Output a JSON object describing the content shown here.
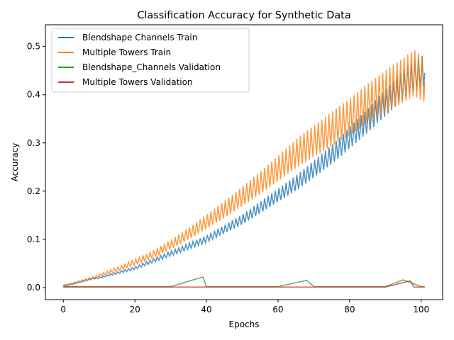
{
  "chart_data": {
    "type": "line",
    "title": "Classification Accuracy for Synthetic Data",
    "xlabel": "Epochs",
    "ylabel": "Accuracy",
    "xlim": [
      -5,
      106
    ],
    "ylim": [
      -0.025,
      0.545
    ],
    "xticks": [
      0,
      20,
      40,
      60,
      80,
      100
    ],
    "yticks": [
      0.0,
      0.1,
      0.2,
      0.3,
      0.4,
      0.5
    ],
    "xtick_labels": [
      "0",
      "20",
      "40",
      "60",
      "80",
      "100"
    ],
    "ytick_labels": [
      "0.0",
      "0.1",
      "0.2",
      "0.3",
      "0.4",
      "0.5"
    ],
    "grid": false,
    "legend_position": "upper-left",
    "series": [
      {
        "name": "Blendshape Channels Train",
        "color": "#1f77b4",
        "x": [
          0,
          2,
          4,
          6,
          8,
          10,
          12,
          14,
          16,
          18,
          20,
          22,
          24,
          26,
          28,
          30,
          32,
          34,
          36,
          38,
          40,
          42,
          44,
          46,
          48,
          50,
          52,
          54,
          56,
          58,
          60,
          62,
          64,
          66,
          68,
          70,
          72,
          74,
          76,
          78,
          80,
          82,
          84,
          86,
          88,
          90,
          92,
          94,
          96,
          98,
          100,
          101
        ],
        "values": [
          0.003,
          0.006,
          0.01,
          0.014,
          0.018,
          0.02,
          0.024,
          0.028,
          0.032,
          0.036,
          0.04,
          0.046,
          0.052,
          0.058,
          0.064,
          0.07,
          0.076,
          0.082,
          0.088,
          0.094,
          0.1,
          0.108,
          0.116,
          0.124,
          0.132,
          0.14,
          0.15,
          0.16,
          0.17,
          0.18,
          0.19,
          0.2,
          0.21,
          0.22,
          0.232,
          0.244,
          0.256,
          0.268,
          0.28,
          0.294,
          0.308,
          0.322,
          0.336,
          0.35,
          0.366,
          0.38,
          0.395,
          0.41,
          0.425,
          0.435,
          0.445,
          0.445
        ],
        "spike_ratio": 0.08
      },
      {
        "name": "Multiple Towers Train",
        "color": "#ff7f0e",
        "x": [
          0,
          2,
          4,
          6,
          8,
          10,
          12,
          14,
          16,
          18,
          20,
          22,
          24,
          26,
          28,
          30,
          32,
          34,
          36,
          38,
          40,
          42,
          44,
          46,
          48,
          50,
          52,
          54,
          56,
          58,
          60,
          62,
          64,
          66,
          68,
          70,
          72,
          74,
          76,
          78,
          80,
          82,
          84,
          86,
          88,
          90,
          92,
          94,
          96,
          98,
          100,
          101
        ],
        "values": [
          0.005,
          0.008,
          0.012,
          0.016,
          0.02,
          0.025,
          0.03,
          0.035,
          0.04,
          0.046,
          0.052,
          0.058,
          0.065,
          0.072,
          0.08,
          0.088,
          0.097,
          0.106,
          0.115,
          0.125,
          0.135,
          0.145,
          0.155,
          0.165,
          0.176,
          0.187,
          0.198,
          0.209,
          0.22,
          0.232,
          0.244,
          0.256,
          0.268,
          0.28,
          0.29,
          0.3,
          0.31,
          0.32,
          0.33,
          0.34,
          0.35,
          0.36,
          0.372,
          0.382,
          0.392,
          0.402,
          0.412,
          0.42,
          0.43,
          0.44,
          0.43,
          0.425
        ],
        "spike_ratio": 0.12
      },
      {
        "name": "Blendshape_Channels Validation",
        "color": "#2ca02c",
        "x": [
          0,
          10,
          20,
          30,
          39,
          40,
          50,
          60,
          68,
          70,
          80,
          90,
          95,
          100,
          101
        ],
        "values": [
          0.002,
          0.002,
          0.002,
          0.002,
          0.022,
          0.002,
          0.002,
          0.002,
          0.015,
          0.002,
          0.002,
          0.002,
          0.016,
          0.002,
          0.002
        ]
      },
      {
        "name": "Multiple Towers Validation",
        "color": "#d62728",
        "x": [
          0,
          10,
          20,
          30,
          40,
          50,
          60,
          70,
          80,
          90,
          97,
          98,
          100,
          101
        ],
        "values": [
          0.001,
          0.001,
          0.001,
          0.001,
          0.001,
          0.001,
          0.001,
          0.001,
          0.001,
          0.001,
          0.014,
          0.001,
          0.001,
          0.001
        ]
      }
    ]
  }
}
